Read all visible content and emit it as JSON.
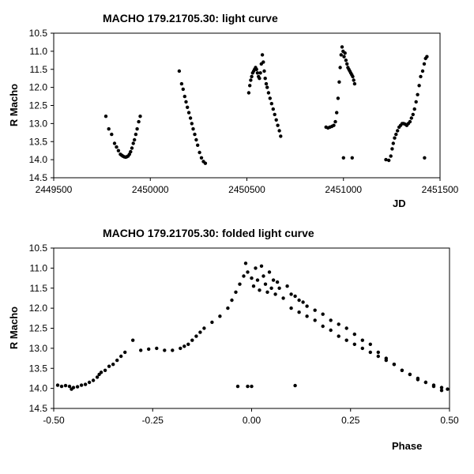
{
  "chart_data": [
    {
      "type": "scatter",
      "title": "MACHO 179.21705.30: light curve",
      "xlabel": "JD",
      "ylabel": "R Macho",
      "xlim": [
        2449500,
        2451500
      ],
      "ylim": [
        10.5,
        14.5
      ],
      "y_inverted": true,
      "xticks": [
        2449500,
        2450000,
        2450500,
        2451000,
        2451500
      ],
      "yticks": [
        10.5,
        11.0,
        11.5,
        12.0,
        12.5,
        13.0,
        13.5,
        14.0,
        14.5
      ],
      "xtick_labels": [
        "2449500",
        "2450000",
        "2450500",
        "2451000",
        "2451500"
      ],
      "ytick_labels": [
        "10.5",
        "11.0",
        "11.5",
        "12.0",
        "12.5",
        "13.0",
        "13.5",
        "14.0",
        "14.5"
      ],
      "grid": false,
      "series": [
        {
          "points": [
            [
              2449770,
              12.8
            ],
            [
              2449785,
              13.15
            ],
            [
              2449800,
              13.3
            ],
            [
              2449815,
              13.55
            ],
            [
              2449825,
              13.65
            ],
            [
              2449835,
              13.75
            ],
            [
              2449845,
              13.85
            ],
            [
              2449852,
              13.88
            ],
            [
              2449858,
              13.9
            ],
            [
              2449865,
              13.92
            ],
            [
              2449872,
              13.93
            ],
            [
              2449878,
              13.92
            ],
            [
              2449885,
              13.9
            ],
            [
              2449892,
              13.85
            ],
            [
              2449898,
              13.78
            ],
            [
              2449905,
              13.68
            ],
            [
              2449912,
              13.55
            ],
            [
              2449918,
              13.45
            ],
            [
              2449925,
              13.3
            ],
            [
              2449932,
              13.15
            ],
            [
              2449940,
              12.95
            ],
            [
              2449948,
              12.8
            ],
            [
              2450150,
              11.55
            ],
            [
              2450162,
              11.9
            ],
            [
              2450170,
              12.05
            ],
            [
              2450178,
              12.25
            ],
            [
              2450185,
              12.4
            ],
            [
              2450192,
              12.55
            ],
            [
              2450200,
              12.7
            ],
            [
              2450208,
              12.85
            ],
            [
              2450215,
              13.0
            ],
            [
              2450222,
              13.15
            ],
            [
              2450230,
              13.3
            ],
            [
              2450238,
              13.45
            ],
            [
              2450245,
              13.6
            ],
            [
              2450255,
              13.8
            ],
            [
              2450265,
              13.95
            ],
            [
              2450275,
              14.05
            ],
            [
              2450285,
              14.1
            ],
            [
              2450510,
              12.15
            ],
            [
              2450515,
              11.95
            ],
            [
              2450520,
              11.8
            ],
            [
              2450525,
              11.7
            ],
            [
              2450530,
              11.6
            ],
            [
              2450535,
              11.55
            ],
            [
              2450540,
              11.5
            ],
            [
              2450545,
              11.45
            ],
            [
              2450550,
              11.5
            ],
            [
              2450555,
              11.6
            ],
            [
              2450560,
              11.7
            ],
            [
              2450565,
              11.75
            ],
            [
              2450570,
              11.6
            ],
            [
              2450575,
              11.35
            ],
            [
              2450580,
              11.1
            ],
            [
              2450585,
              11.3
            ],
            [
              2450590,
              11.55
            ],
            [
              2450595,
              11.75
            ],
            [
              2450600,
              11.9
            ],
            [
              2450605,
              12.0
            ],
            [
              2450612,
              12.15
            ],
            [
              2450620,
              12.3
            ],
            [
              2450628,
              12.45
            ],
            [
              2450636,
              12.6
            ],
            [
              2450644,
              12.75
            ],
            [
              2450652,
              12.9
            ],
            [
              2450660,
              13.05
            ],
            [
              2450668,
              13.2
            ],
            [
              2450675,
              13.35
            ],
            [
              2450910,
              13.1
            ],
            [
              2450920,
              13.12
            ],
            [
              2450930,
              13.1
            ],
            [
              2450940,
              13.08
            ],
            [
              2450950,
              13.05
            ],
            [
              2450958,
              12.95
            ],
            [
              2450965,
              12.7
            ],
            [
              2450972,
              12.3
            ],
            [
              2450978,
              11.85
            ],
            [
              2450983,
              11.45
            ],
            [
              2450988,
              11.1
            ],
            [
              2450993,
              10.88
            ],
            [
              2450998,
              11.0
            ],
            [
              2451003,
              11.15
            ],
            [
              2451008,
              11.05
            ],
            [
              2451013,
              11.25
            ],
            [
              2451018,
              11.35
            ],
            [
              2451023,
              11.45
            ],
            [
              2451028,
              11.5
            ],
            [
              2451033,
              11.55
            ],
            [
              2451038,
              11.6
            ],
            [
              2451043,
              11.65
            ],
            [
              2451048,
              11.7
            ],
            [
              2451053,
              11.8
            ],
            [
              2451058,
              11.9
            ],
            [
              2451000,
              13.95
            ],
            [
              2451045,
              13.95
            ],
            [
              2451220,
              14.0
            ],
            [
              2451235,
              14.02
            ],
            [
              2451245,
              13.9
            ],
            [
              2451252,
              13.7
            ],
            [
              2451258,
              13.55
            ],
            [
              2451265,
              13.4
            ],
            [
              2451272,
              13.3
            ],
            [
              2451280,
              13.2
            ],
            [
              2451288,
              13.1
            ],
            [
              2451296,
              13.05
            ],
            [
              2451304,
              13.0
            ],
            [
              2451312,
              13.0
            ],
            [
              2451320,
              13.02
            ],
            [
              2451328,
              13.05
            ],
            [
              2451336,
              13.0
            ],
            [
              2451344,
              12.95
            ],
            [
              2451352,
              12.85
            ],
            [
              2451360,
              12.75
            ],
            [
              2451368,
              12.6
            ],
            [
              2451376,
              12.4
            ],
            [
              2451384,
              12.2
            ],
            [
              2451392,
              11.95
            ],
            [
              2451400,
              11.7
            ],
            [
              2451410,
              11.55
            ],
            [
              2451418,
              11.35
            ],
            [
              2451425,
              11.2
            ],
            [
              2451432,
              11.15
            ],
            [
              2451420,
              13.95
            ]
          ]
        }
      ]
    },
    {
      "type": "scatter",
      "title": "MACHO 179.21705.30: folded light curve",
      "xlabel": "Phase",
      "ylabel": "R Macho",
      "xlim": [
        -0.5,
        0.5
      ],
      "ylim": [
        10.5,
        14.5
      ],
      "y_inverted": true,
      "xticks": [
        -0.5,
        -0.25,
        0.0,
        0.25,
        0.5
      ],
      "yticks": [
        10.5,
        11.0,
        11.5,
        12.0,
        12.5,
        13.0,
        13.5,
        14.0,
        14.5
      ],
      "xtick_labels": [
        "-0.50",
        "-0.25",
        "0.00",
        "0.25",
        "0.50"
      ],
      "ytick_labels": [
        "10.5",
        "11.0",
        "11.5",
        "12.0",
        "12.5",
        "13.0",
        "13.5",
        "14.0",
        "14.5"
      ],
      "grid": false,
      "series": [
        {
          "points": [
            [
              -0.49,
              13.92
            ],
            [
              -0.48,
              13.95
            ],
            [
              -0.47,
              13.93
            ],
            [
              -0.46,
              13.95
            ],
            [
              -0.455,
              14.02
            ],
            [
              -0.45,
              13.98
            ],
            [
              -0.44,
              13.96
            ],
            [
              -0.43,
              13.92
            ],
            [
              -0.42,
              13.9
            ],
            [
              -0.41,
              13.85
            ],
            [
              -0.4,
              13.8
            ],
            [
              -0.39,
              13.72
            ],
            [
              -0.385,
              13.65
            ],
            [
              -0.38,
              13.6
            ],
            [
              -0.37,
              13.55
            ],
            [
              -0.36,
              13.45
            ],
            [
              -0.35,
              13.4
            ],
            [
              -0.34,
              13.3
            ],
            [
              -0.33,
              13.2
            ],
            [
              -0.32,
              13.1
            ],
            [
              -0.3,
              12.8
            ],
            [
              -0.28,
              13.05
            ],
            [
              -0.26,
              13.02
            ],
            [
              -0.24,
              13.0
            ],
            [
              -0.22,
              13.05
            ],
            [
              -0.2,
              13.05
            ],
            [
              -0.18,
              13.0
            ],
            [
              -0.17,
              12.95
            ],
            [
              -0.16,
              12.9
            ],
            [
              -0.15,
              12.8
            ],
            [
              -0.14,
              12.7
            ],
            [
              -0.13,
              12.6
            ],
            [
              -0.12,
              12.5
            ],
            [
              -0.1,
              12.35
            ],
            [
              -0.08,
              12.2
            ],
            [
              -0.06,
              12.0
            ],
            [
              -0.05,
              11.8
            ],
            [
              -0.04,
              11.6
            ],
            [
              -0.03,
              11.4
            ],
            [
              -0.02,
              11.2
            ],
            [
              -0.015,
              10.88
            ],
            [
              -0.01,
              11.1
            ],
            [
              0.0,
              11.25
            ],
            [
              0.005,
              11.45
            ],
            [
              0.01,
              11.0
            ],
            [
              0.015,
              11.3
            ],
            [
              0.02,
              11.55
            ],
            [
              0.025,
              10.95
            ],
            [
              0.03,
              11.2
            ],
            [
              0.035,
              11.4
            ],
            [
              0.04,
              11.6
            ],
            [
              0.045,
              11.1
            ],
            [
              0.05,
              11.5
            ],
            [
              0.055,
              11.3
            ],
            [
              0.06,
              11.65
            ],
            [
              0.065,
              11.35
            ],
            [
              0.07,
              11.5
            ],
            [
              0.08,
              11.75
            ],
            [
              0.09,
              11.45
            ],
            [
              0.1,
              11.65
            ],
            [
              0.11,
              11.7
            ],
            [
              0.12,
              11.8
            ],
            [
              0.13,
              11.85
            ],
            [
              0.14,
              11.95
            ],
            [
              0.16,
              12.05
            ],
            [
              0.18,
              12.15
            ],
            [
              0.2,
              12.3
            ],
            [
              0.22,
              12.4
            ],
            [
              0.24,
              12.5
            ],
            [
              0.26,
              12.65
            ],
            [
              0.28,
              12.8
            ],
            [
              0.3,
              12.9
            ],
            [
              0.32,
              13.1
            ],
            [
              0.34,
              13.25
            ],
            [
              0.36,
              13.4
            ],
            [
              0.38,
              13.55
            ],
            [
              0.4,
              13.65
            ],
            [
              0.42,
              13.78
            ],
            [
              0.44,
              13.85
            ],
            [
              0.46,
              13.92
            ],
            [
              0.48,
              13.98
            ],
            [
              0.495,
              14.02
            ],
            [
              0.1,
              12.0
            ],
            [
              0.12,
              12.1
            ],
            [
              0.14,
              12.2
            ],
            [
              0.16,
              12.3
            ],
            [
              0.18,
              12.45
            ],
            [
              0.2,
              12.55
            ],
            [
              0.22,
              12.7
            ],
            [
              0.24,
              12.8
            ],
            [
              0.26,
              12.9
            ],
            [
              0.28,
              13.0
            ],
            [
              0.3,
              13.1
            ],
            [
              0.32,
              13.2
            ],
            [
              0.34,
              13.3
            ],
            [
              0.36,
              13.4
            ],
            [
              0.38,
              13.55
            ],
            [
              0.4,
              13.65
            ],
            [
              0.42,
              13.75
            ],
            [
              0.44,
              13.85
            ],
            [
              0.46,
              13.95
            ],
            [
              0.48,
              14.05
            ],
            [
              -0.035,
              13.95
            ],
            [
              -0.01,
              13.95
            ],
            [
              0.0,
              13.95
            ],
            [
              0.11,
              13.93
            ]
          ]
        }
      ]
    }
  ]
}
